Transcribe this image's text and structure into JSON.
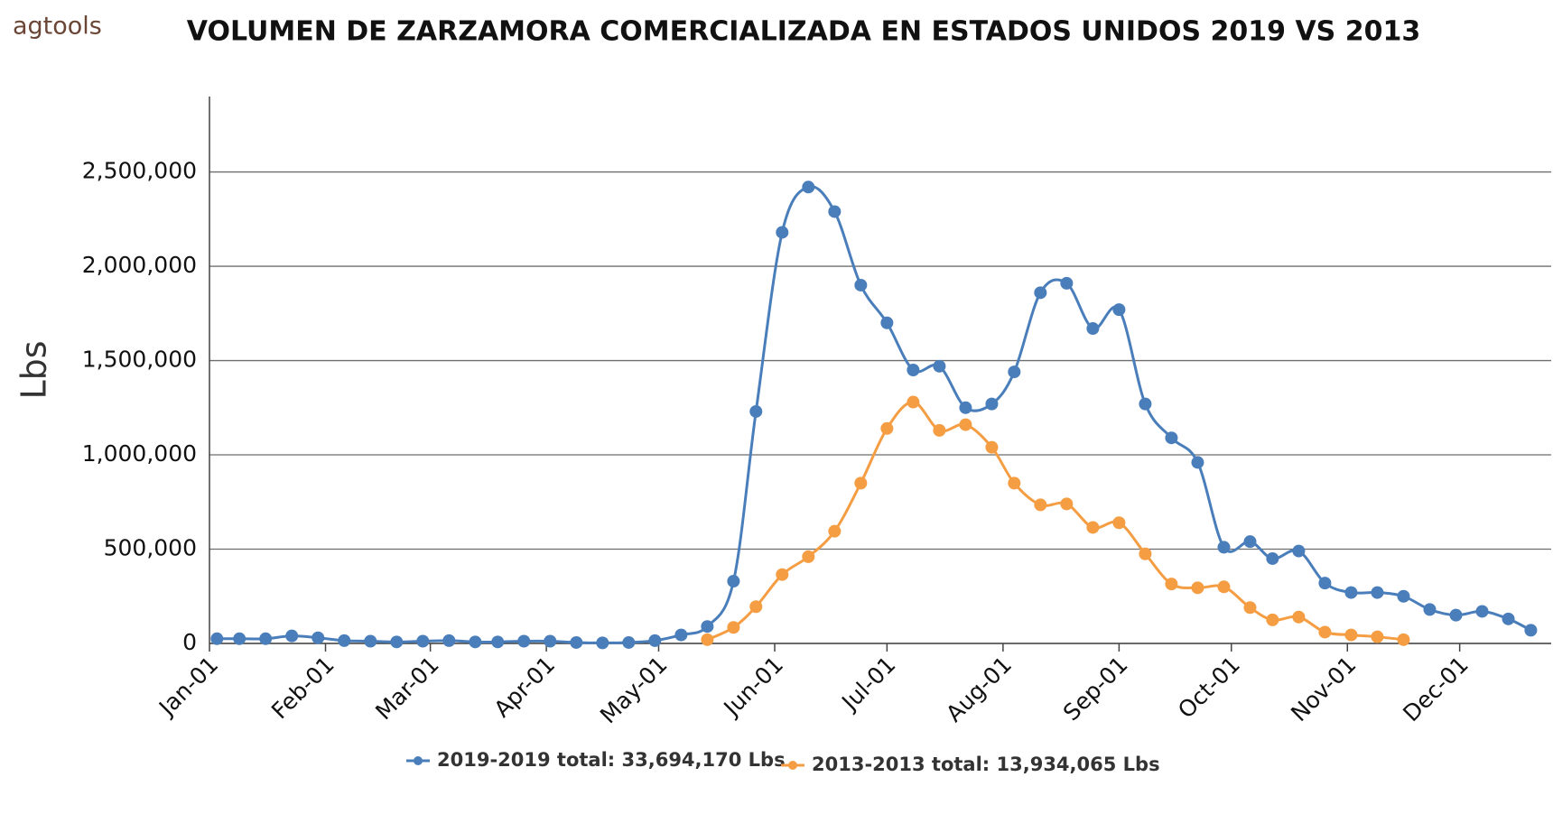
{
  "logo": "agtools",
  "chart_data": {
    "type": "line",
    "title": "VOLUMEN DE ZARZAMORA COMERCIALIZADA EN ESTADOS UNIDOS 2019 VS 2013",
    "y_label": "Lbs",
    "x": [
      "Jan-03",
      "Jan-09",
      "Jan-16",
      "Jan-23",
      "Jan-30",
      "Feb-06",
      "Feb-13",
      "Feb-20",
      "Feb-27",
      "Mar-06",
      "Mar-13",
      "Mar-19",
      "Mar-26",
      "Apr-02",
      "Apr-09",
      "Apr-16",
      "Apr-23",
      "Apr-30",
      "May-07",
      "May-14",
      "May-21",
      "May-27",
      "Jun-03",
      "Jun-10",
      "Jun-17",
      "Jun-24",
      "Jul-01",
      "Jul-08",
      "Jul-15",
      "Jul-22",
      "Jul-29",
      "Aug-04",
      "Aug-11",
      "Aug-18",
      "Aug-25",
      "Sep-01",
      "Sep-08",
      "Sep-15",
      "Sep-22",
      "Sep-29",
      "Oct-06",
      "Oct-12",
      "Oct-19",
      "Oct-26",
      "Nov-02",
      "Nov-09",
      "Nov-16",
      "Nov-23",
      "Nov-30",
      "Dec-07",
      "Dec-14",
      "Dec-20"
    ],
    "series": [
      {
        "name": "2019-2019 total: 33,694,170 Lbs",
        "color": "#4a7ebb",
        "values": [
          25000,
          25000,
          25000,
          40000,
          30000,
          15000,
          12000,
          8000,
          12000,
          15000,
          8000,
          8000,
          12000,
          12000,
          5000,
          3000,
          5000,
          15000,
          45000,
          90000,
          330000,
          1230000,
          2180000,
          2420000,
          2290000,
          1900000,
          1700000,
          1450000,
          1470000,
          1250000,
          1270000,
          1440000,
          1860000,
          1910000,
          1670000,
          1770000,
          1270000,
          1090000,
          960000,
          510000,
          540000,
          450000,
          490000,
          320000,
          270000,
          270000,
          250000,
          180000,
          150000,
          170000,
          130000,
          70000
        ]
      },
      {
        "name": "2013-2013 total: 13,934,065 Lbs",
        "color": "#f59d43",
        "values": [
          null,
          null,
          null,
          null,
          null,
          null,
          null,
          null,
          null,
          null,
          null,
          null,
          null,
          null,
          null,
          null,
          null,
          null,
          null,
          20000,
          85000,
          195000,
          365000,
          460000,
          595000,
          850000,
          1140000,
          1280000,
          1130000,
          1160000,
          1040000,
          850000,
          735000,
          740000,
          615000,
          640000,
          475000,
          315000,
          295000,
          300000,
          190000,
          125000,
          140000,
          60000,
          45000,
          35000,
          20000,
          null,
          null,
          null,
          null,
          null
        ]
      }
    ],
    "xlim": [
      "Jan-01",
      "Dec-24"
    ],
    "xticks": [
      "Jan-01",
      "Feb-01",
      "Mar-01",
      "Apr-01",
      "May-01",
      "Jun-01",
      "Jul-01",
      "Aug-01",
      "Sep-01",
      "Oct-01",
      "Nov-01",
      "Dec-01"
    ],
    "ylim": [
      0,
      2900000
    ],
    "yticks": [
      0,
      {
        "value": 500000,
        "label": "500,000"
      },
      {
        "value": 1000000,
        "label": "1,000,000"
      },
      {
        "value": 1500000,
        "label": "1,500,000"
      },
      {
        "value": 2000000,
        "label": "2,000,000"
      },
      {
        "value": 2500000,
        "label": "2,500,000"
      }
    ],
    "grid": true,
    "legend": "bottom"
  }
}
